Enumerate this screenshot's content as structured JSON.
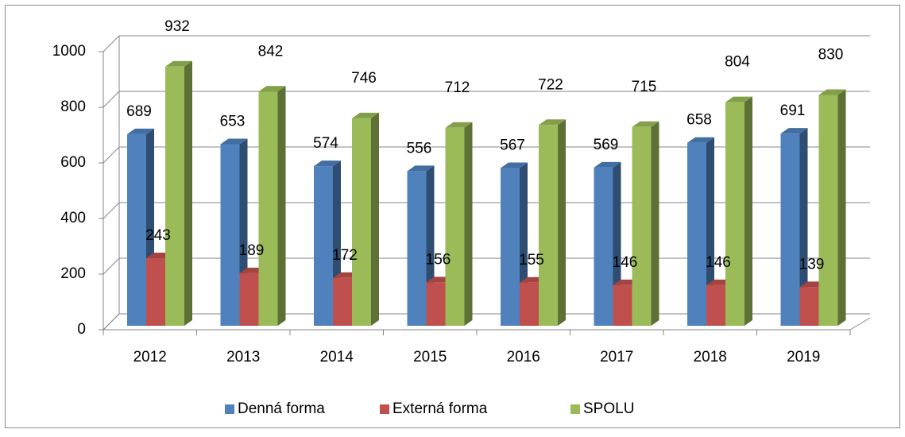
{
  "chart_data": {
    "type": "bar3d",
    "categories": [
      "2012",
      "2013",
      "2014",
      "2015",
      "2016",
      "2017",
      "2018",
      "2019"
    ],
    "series": [
      {
        "name": "Denná forma",
        "color": "#4f81bd",
        "values": [
          689,
          653,
          574,
          556,
          567,
          569,
          658,
          691
        ]
      },
      {
        "name": "Externá forma",
        "color": "#c0504d",
        "values": [
          243,
          189,
          172,
          156,
          155,
          146,
          146,
          139
        ]
      },
      {
        "name": "SPOLU",
        "color": "#9bbb59",
        "values": [
          932,
          842,
          746,
          712,
          722,
          715,
          804,
          830
        ]
      }
    ],
    "ylim": [
      0,
      1000
    ],
    "yticks": [
      0,
      200,
      400,
      600,
      800,
      1000
    ],
    "grid": true,
    "legend": "bottom"
  }
}
